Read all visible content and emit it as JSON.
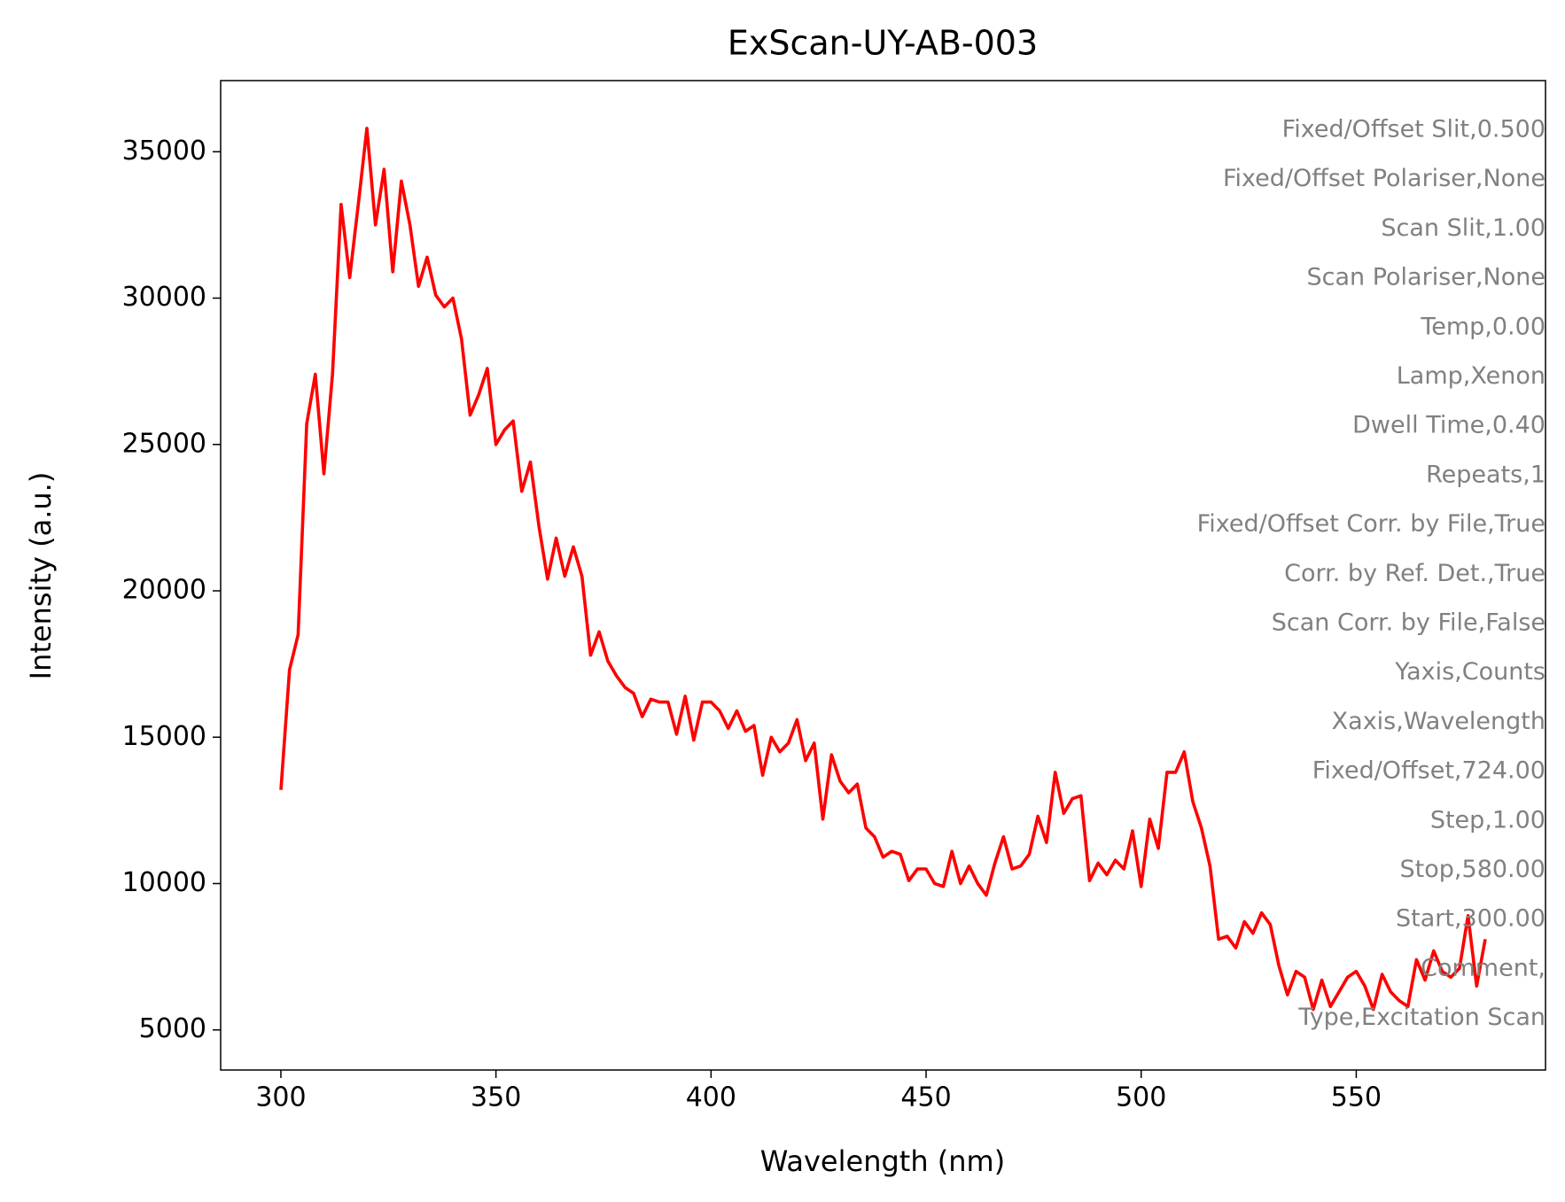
{
  "chart_data": {
    "type": "line",
    "title": "ExScan-UY-AB-003",
    "xlabel": "Wavelength (nm)",
    "ylabel": "Intensity (a.u.)",
    "xlim": [
      286,
      594
    ],
    "xticks": [
      300,
      350,
      400,
      450,
      500,
      550
    ],
    "ylim": [
      3630,
      37430
    ],
    "yticks": [
      5000,
      10000,
      15000,
      20000,
      25000,
      30000,
      35000
    ],
    "x": [
      300,
      302,
      304,
      306,
      308,
      310,
      312,
      314,
      316,
      318,
      320,
      322,
      324,
      326,
      328,
      330,
      332,
      334,
      336,
      338,
      340,
      342,
      344,
      346,
      348,
      350,
      352,
      354,
      356,
      358,
      360,
      362,
      364,
      366,
      368,
      370,
      372,
      374,
      376,
      378,
      380,
      382,
      384,
      386,
      388,
      390,
      392,
      394,
      396,
      398,
      400,
      402,
      404,
      406,
      408,
      410,
      412,
      414,
      416,
      418,
      420,
      422,
      424,
      426,
      428,
      430,
      432,
      434,
      436,
      438,
      440,
      442,
      444,
      446,
      448,
      450,
      452,
      454,
      456,
      458,
      460,
      462,
      464,
      466,
      468,
      470,
      472,
      474,
      476,
      478,
      480,
      482,
      484,
      486,
      488,
      490,
      492,
      494,
      496,
      498,
      500,
      502,
      504,
      506,
      508,
      510,
      512,
      514,
      516,
      518,
      520,
      522,
      524,
      526,
      528,
      530,
      532,
      534,
      536,
      538,
      540,
      542,
      544,
      546,
      548,
      550,
      552,
      554,
      556,
      558,
      560,
      562,
      564,
      566,
      568,
      570,
      572,
      574,
      576,
      578,
      580
    ],
    "series": [
      {
        "color": "#ff0000",
        "values": [
          13200,
          17300,
          18500,
          25700,
          27400,
          24000,
          27400,
          33200,
          30700,
          33200,
          35800,
          32500,
          34400,
          30900,
          34000,
          32500,
          30400,
          31400,
          30100,
          29700,
          30000,
          28600,
          26000,
          26700,
          27600,
          25000,
          25500,
          25800,
          23400,
          24400,
          22200,
          20400,
          21800,
          20500,
          21500,
          20500,
          17800,
          18600,
          17600,
          17100,
          16700,
          16500,
          15700,
          16300,
          16200,
          16200,
          15100,
          16400,
          14900,
          16200,
          16200,
          15900,
          15300,
          15900,
          15200,
          15400,
          13700,
          15000,
          14500,
          14800,
          15600,
          14200,
          14800,
          12200,
          14400,
          13500,
          13100,
          13400,
          11900,
          11600,
          10900,
          11100,
          11000,
          10100,
          10500,
          10500,
          10000,
          9900,
          11100,
          10000,
          10600,
          10000,
          9600,
          10700,
          11600,
          10500,
          10600,
          11000,
          12300,
          11400,
          13800,
          12400,
          12900,
          13000,
          10100,
          10700,
          10300,
          10800,
          10500,
          11800,
          9900,
          12200,
          11200,
          13800,
          13800,
          14500,
          12800,
          11900,
          10600,
          8100,
          8200,
          7800,
          8700,
          8300,
          9000,
          8600,
          7200,
          6200,
          7000,
          6800,
          5700,
          6700,
          5800,
          6300,
          6800,
          7000,
          6500,
          5700,
          6900,
          6300,
          6000,
          5800,
          7400,
          6700,
          7700,
          7000,
          6800,
          7100,
          8900,
          6500,
          8100
        ]
      }
    ],
    "annotations": [
      "Fixed/Offset Slit,0.500",
      "Fixed/Offset Polariser,None",
      "Scan Slit,1.00",
      "Scan Polariser,None",
      "Temp,0.00",
      "Lamp,Xenon",
      "Dwell Time,0.40",
      "Repeats,1",
      "Fixed/Offset Corr. by File,True",
      "Corr. by Ref. Det.,True",
      "Scan Corr. by File,False",
      "Yaxis,Counts",
      "Xaxis,Wavelength",
      "Fixed/Offset,724.00",
      "Step,1.00",
      "Stop,580.00",
      "Start,300.00",
      "Comment,",
      "Type,Excitation Scan"
    ],
    "annotation_color": "#808080"
  }
}
